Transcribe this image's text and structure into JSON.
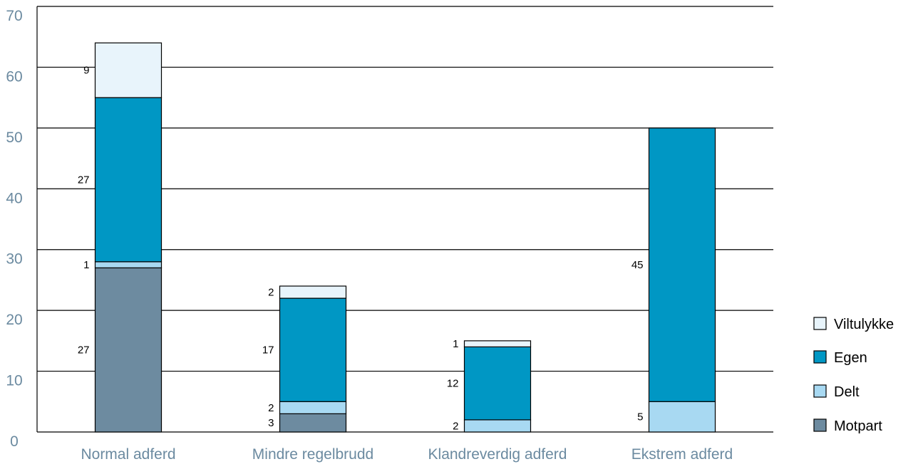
{
  "chart_data": {
    "type": "bar",
    "stacked": true,
    "categories": [
      "Normal adferd",
      "Mindre regelbrudd",
      "Klandreverdig adferd",
      "Ekstrem adferd"
    ],
    "series": [
      {
        "name": "Motpart",
        "color": "#6d8ba0",
        "values": [
          27,
          3,
          0,
          0
        ]
      },
      {
        "name": "Delt",
        "color": "#a8d9f2",
        "values": [
          1,
          2,
          2,
          5
        ]
      },
      {
        "name": "Egen",
        "color": "#0097c4",
        "values": [
          27,
          17,
          12,
          45
        ]
      },
      {
        "name": "Viltulykke",
        "color": "#e8f4fb",
        "values": [
          9,
          2,
          1,
          0
        ]
      }
    ],
    "legend_order": [
      "Viltulykke",
      "Egen",
      "Delt",
      "Motpart"
    ],
    "legend_position": "right",
    "yticks": [
      0,
      10,
      20,
      30,
      40,
      50,
      60,
      70
    ],
    "ylim": [
      0,
      70
    ],
    "grid": true,
    "title": "",
    "xlabel": "",
    "ylabel": ""
  }
}
